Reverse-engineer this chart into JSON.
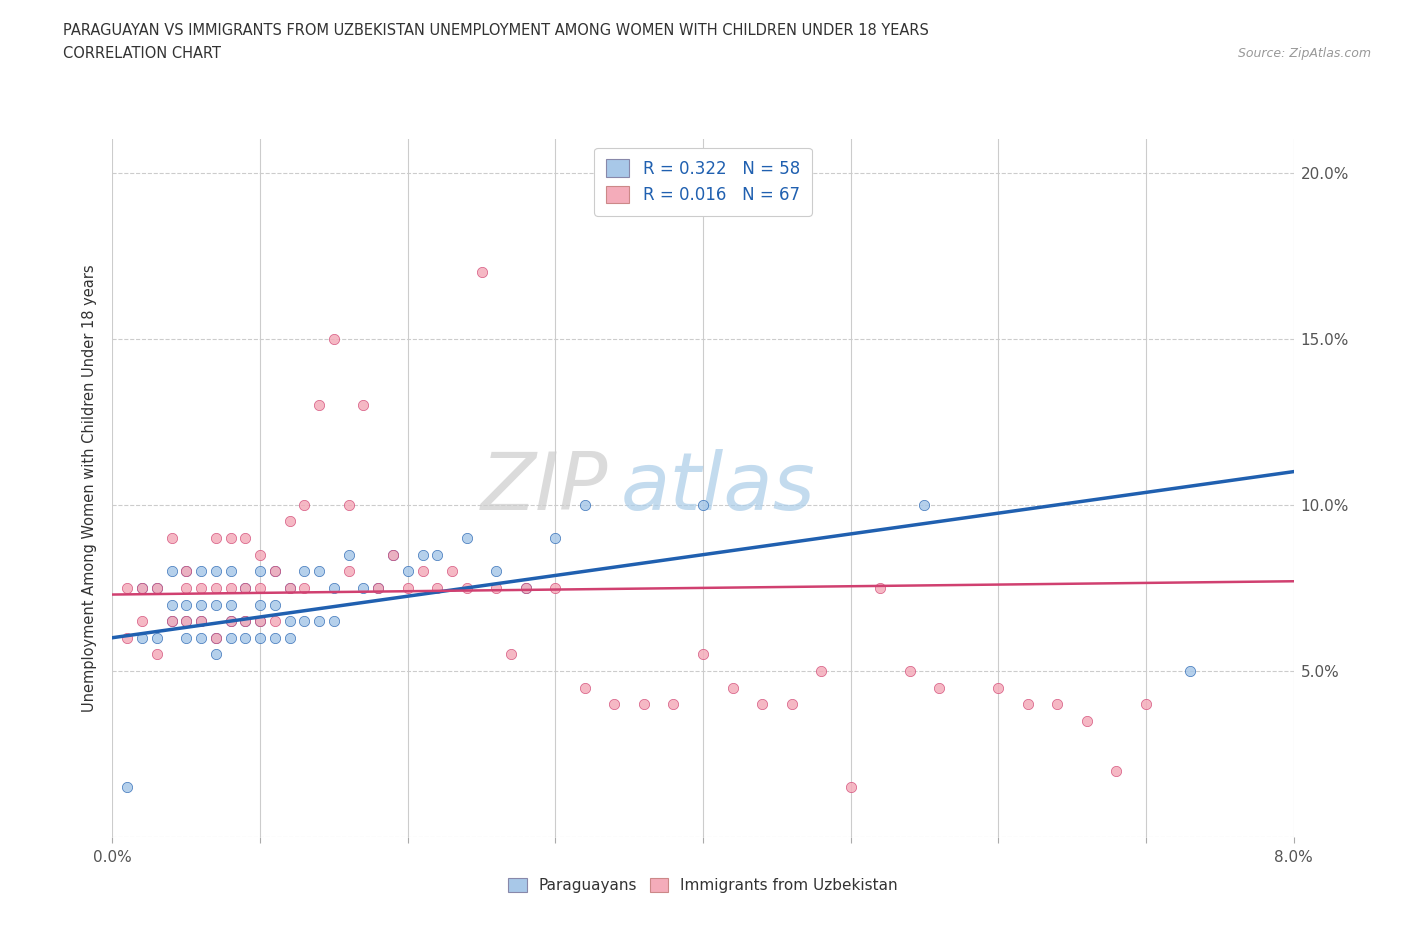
{
  "title_line1": "PARAGUAYAN VS IMMIGRANTS FROM UZBEKISTAN UNEMPLOYMENT AMONG WOMEN WITH CHILDREN UNDER 18 YEARS",
  "title_line2": "CORRELATION CHART",
  "source_text": "Source: ZipAtlas.com",
  "ylabel": "Unemployment Among Women with Children Under 18 years",
  "xlim": [
    0.0,
    0.08
  ],
  "ylim": [
    0.0,
    0.21
  ],
  "xticks": [
    0.0,
    0.01,
    0.02,
    0.03,
    0.04,
    0.05,
    0.06,
    0.07,
    0.08
  ],
  "yticks": [
    0.0,
    0.05,
    0.1,
    0.15,
    0.2
  ],
  "blue_color": "#A8C8E8",
  "pink_color": "#F4ACBA",
  "blue_line_color": "#2060B0",
  "pink_line_color": "#D04070",
  "watermark_zip": "ZIP",
  "watermark_atlas": "atlas",
  "blue_scatter_x": [
    0.001,
    0.002,
    0.002,
    0.003,
    0.003,
    0.004,
    0.004,
    0.004,
    0.005,
    0.005,
    0.005,
    0.005,
    0.006,
    0.006,
    0.006,
    0.006,
    0.007,
    0.007,
    0.007,
    0.007,
    0.008,
    0.008,
    0.008,
    0.008,
    0.009,
    0.009,
    0.009,
    0.01,
    0.01,
    0.01,
    0.01,
    0.011,
    0.011,
    0.011,
    0.012,
    0.012,
    0.012,
    0.013,
    0.013,
    0.014,
    0.014,
    0.015,
    0.015,
    0.016,
    0.017,
    0.018,
    0.019,
    0.02,
    0.021,
    0.022,
    0.024,
    0.026,
    0.028,
    0.03,
    0.032,
    0.04,
    0.055,
    0.073
  ],
  "blue_scatter_y": [
    0.015,
    0.06,
    0.075,
    0.06,
    0.075,
    0.065,
    0.07,
    0.08,
    0.06,
    0.065,
    0.07,
    0.08,
    0.06,
    0.065,
    0.07,
    0.08,
    0.055,
    0.06,
    0.07,
    0.08,
    0.06,
    0.065,
    0.07,
    0.08,
    0.06,
    0.065,
    0.075,
    0.06,
    0.065,
    0.07,
    0.08,
    0.06,
    0.07,
    0.08,
    0.06,
    0.065,
    0.075,
    0.065,
    0.08,
    0.065,
    0.08,
    0.065,
    0.075,
    0.085,
    0.075,
    0.075,
    0.085,
    0.08,
    0.085,
    0.085,
    0.09,
    0.08,
    0.075,
    0.09,
    0.1,
    0.1,
    0.1,
    0.05
  ],
  "pink_scatter_x": [
    0.001,
    0.001,
    0.002,
    0.002,
    0.003,
    0.003,
    0.004,
    0.004,
    0.005,
    0.005,
    0.005,
    0.006,
    0.006,
    0.007,
    0.007,
    0.007,
    0.008,
    0.008,
    0.008,
    0.009,
    0.009,
    0.009,
    0.01,
    0.01,
    0.01,
    0.011,
    0.011,
    0.012,
    0.012,
    0.013,
    0.013,
    0.014,
    0.015,
    0.016,
    0.016,
    0.017,
    0.018,
    0.019,
    0.02,
    0.021,
    0.022,
    0.023,
    0.024,
    0.025,
    0.026,
    0.027,
    0.028,
    0.03,
    0.032,
    0.034,
    0.036,
    0.038,
    0.04,
    0.042,
    0.044,
    0.046,
    0.048,
    0.05,
    0.052,
    0.054,
    0.056,
    0.06,
    0.062,
    0.064,
    0.066,
    0.068,
    0.07
  ],
  "pink_scatter_y": [
    0.06,
    0.075,
    0.065,
    0.075,
    0.055,
    0.075,
    0.065,
    0.09,
    0.065,
    0.075,
    0.08,
    0.065,
    0.075,
    0.06,
    0.075,
    0.09,
    0.065,
    0.075,
    0.09,
    0.065,
    0.075,
    0.09,
    0.065,
    0.075,
    0.085,
    0.065,
    0.08,
    0.075,
    0.095,
    0.075,
    0.1,
    0.13,
    0.15,
    0.08,
    0.1,
    0.13,
    0.075,
    0.085,
    0.075,
    0.08,
    0.075,
    0.08,
    0.075,
    0.17,
    0.075,
    0.055,
    0.075,
    0.075,
    0.045,
    0.04,
    0.04,
    0.04,
    0.055,
    0.045,
    0.04,
    0.04,
    0.05,
    0.015,
    0.075,
    0.05,
    0.045,
    0.045,
    0.04,
    0.04,
    0.035,
    0.02,
    0.04
  ]
}
